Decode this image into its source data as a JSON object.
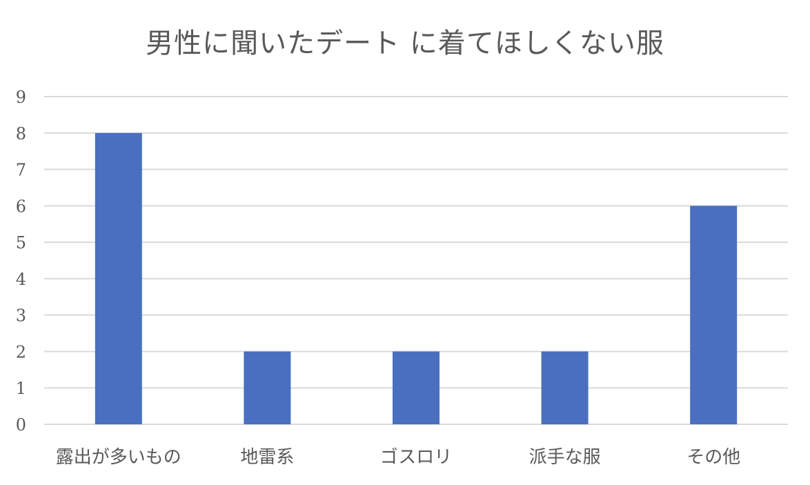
{
  "chart_data": {
    "type": "bar",
    "title": "男性に聞いたデート に着てほしくない服",
    "categories": [
      "露出が多いもの",
      "地雷系",
      "ゴスロリ",
      "派手な服",
      "その他"
    ],
    "values": [
      8,
      2,
      2,
      2,
      6
    ],
    "ylim": [
      0,
      9
    ],
    "yticks": [
      0,
      1,
      2,
      3,
      4,
      5,
      6,
      7,
      8,
      9
    ],
    "xlabel": "",
    "ylabel": "",
    "grid": true,
    "legend": "none",
    "bar_color": "#4A6FBF",
    "grid_color": "#D9D9D9",
    "text_color": "#595959"
  }
}
